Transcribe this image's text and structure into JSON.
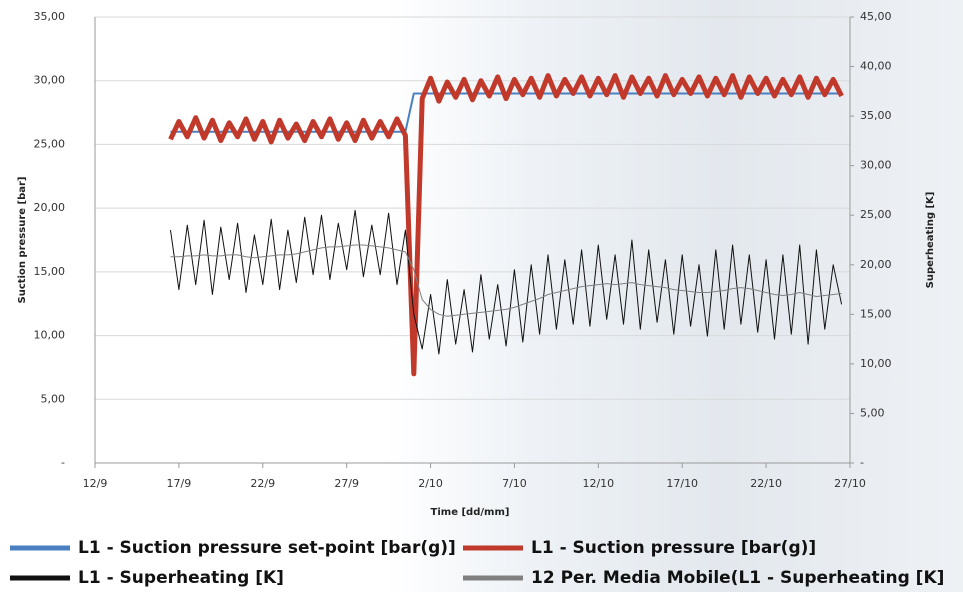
{
  "chart_data": {
    "type": "line",
    "ylabel": "Suction pressure [bar]",
    "y2label": "Superheating [K]",
    "xlabel": "Time [dd/mm]",
    "xlim": [
      0,
      45
    ],
    "xticks": [
      {
        "value": 0,
        "label": "12/9"
      },
      {
        "value": 5,
        "label": "17/9"
      },
      {
        "value": 10,
        "label": "22/9"
      },
      {
        "value": 15,
        "label": "27/9"
      },
      {
        "value": 20,
        "label": "2/10"
      },
      {
        "value": 25,
        "label": "7/10"
      },
      {
        "value": 30,
        "label": "12/10"
      },
      {
        "value": 35,
        "label": "17/10"
      },
      {
        "value": 40,
        "label": "22/10"
      },
      {
        "value": 45,
        "label": "27/10"
      }
    ],
    "ylim": [
      0,
      35
    ],
    "yticks": [
      {
        "value": 0,
        "label": "-"
      },
      {
        "value": 5,
        "label": "5,00"
      },
      {
        "value": 10,
        "label": "10,00"
      },
      {
        "value": 15,
        "label": "15,00"
      },
      {
        "value": 20,
        "label": "20,00"
      },
      {
        "value": 25,
        "label": "25,00"
      },
      {
        "value": 30,
        "label": "30,00"
      },
      {
        "value": 35,
        "label": "35,00"
      }
    ],
    "y2lim": [
      0,
      45
    ],
    "y2ticks": [
      {
        "value": 0,
        "label": "-"
      },
      {
        "value": 5,
        "label": "5,00"
      },
      {
        "value": 10,
        "label": "10,00"
      },
      {
        "value": 15,
        "label": "15,00"
      },
      {
        "value": 20,
        "label": "20,00"
      },
      {
        "value": 25,
        "label": "25,00"
      },
      {
        "value": 30,
        "label": "30,00"
      },
      {
        "value": 35,
        "label": "35,00"
      },
      {
        "value": 40,
        "label": "40,00"
      },
      {
        "value": 45,
        "label": "45,00"
      }
    ],
    "grid": true,
    "x": [
      4.5,
      5,
      5.5,
      6,
      6.5,
      7,
      7.5,
      8,
      8.5,
      9,
      9.5,
      10,
      10.5,
      11,
      11.5,
      12,
      12.5,
      13,
      13.5,
      14,
      14.5,
      15,
      15.5,
      16,
      16.5,
      17,
      17.5,
      18,
      18.5,
      19,
      19.5,
      20,
      20.5,
      21,
      21.5,
      22,
      22.5,
      23,
      23.5,
      24,
      24.5,
      25,
      25.5,
      26,
      26.5,
      27,
      27.5,
      28,
      28.5,
      29,
      29.5,
      30,
      30.5,
      31,
      31.5,
      32,
      32.5,
      33,
      33.5,
      34,
      34.5,
      35,
      35.5,
      36,
      36.5,
      37,
      37.5,
      38,
      38.5,
      39,
      39.5,
      40,
      40.5,
      41,
      41.5,
      42,
      42.5,
      43,
      43.5,
      44,
      44.5
    ],
    "series": [
      {
        "name": "L1 - Suction pressure set-point [bar(g)]",
        "color": "#4a7fc1",
        "axis": "y",
        "values": [
          26,
          26,
          26,
          26,
          26,
          26,
          26,
          26,
          26,
          26,
          26,
          26,
          26,
          26,
          26,
          26,
          26,
          26,
          26,
          26,
          26,
          26,
          26,
          26,
          26,
          26,
          26,
          26,
          26,
          29,
          29,
          29,
          29,
          29,
          29,
          29,
          29,
          29,
          29,
          29,
          29,
          29,
          29,
          29,
          29,
          29,
          29,
          29,
          29,
          29,
          29,
          29,
          29,
          29,
          29,
          29,
          29,
          29,
          29,
          29,
          29,
          29,
          29,
          29,
          29,
          29,
          29,
          29,
          29,
          29,
          29,
          29,
          29,
          29,
          29,
          29,
          29,
          29,
          29,
          29,
          29
        ]
      },
      {
        "name": "L1 - Suction pressure [bar(g)]",
        "color": "#c0392b",
        "axis": "y",
        "values": [
          25.4,
          26.8,
          25.6,
          27.1,
          25.5,
          26.9,
          25.3,
          26.7,
          25.6,
          27.0,
          25.4,
          26.8,
          25.2,
          26.9,
          25.5,
          26.6,
          25.3,
          26.8,
          25.6,
          27.0,
          25.4,
          26.7,
          25.3,
          26.9,
          25.5,
          26.8,
          25.6,
          27.0,
          25.7,
          7.0,
          28.6,
          30.2,
          28.4,
          29.9,
          28.7,
          30.1,
          28.5,
          30.0,
          28.8,
          30.3,
          28.6,
          30.1,
          28.9,
          30.2,
          28.7,
          30.4,
          28.8,
          30.1,
          29.0,
          30.3,
          28.8,
          30.2,
          28.9,
          30.4,
          28.7,
          30.3,
          29.0,
          30.2,
          28.8,
          30.4,
          28.9,
          30.1,
          29.0,
          30.3,
          28.8,
          30.2,
          28.9,
          30.4,
          28.7,
          30.3,
          29.0,
          30.2,
          28.8,
          30.1,
          28.9,
          30.3,
          28.7,
          30.2,
          28.9,
          30.1,
          28.8
        ]
      },
      {
        "name": "L1 - Superheating [K]",
        "color": "#111111",
        "axis": "y2",
        "values": [
          23.5,
          17.5,
          24.0,
          18.0,
          24.5,
          17.0,
          23.8,
          18.5,
          24.2,
          17.2,
          23.0,
          18.0,
          24.6,
          17.5,
          23.5,
          18.2,
          24.8,
          19.0,
          25.0,
          18.5,
          24.2,
          19.5,
          25.5,
          18.8,
          24.0,
          19.0,
          25.2,
          18.0,
          23.5,
          15.0,
          11.5,
          17.0,
          11.0,
          18.5,
          12.0,
          17.5,
          11.2,
          19.0,
          12.5,
          18.0,
          11.8,
          19.5,
          12.2,
          20.0,
          13.0,
          21.0,
          13.5,
          20.5,
          14.0,
          21.5,
          13.8,
          22.0,
          14.5,
          21.0,
          14.0,
          22.5,
          13.5,
          21.5,
          14.2,
          20.5,
          13.0,
          21.0,
          13.8,
          20.0,
          12.8,
          21.5,
          13.5,
          22.0,
          14.0,
          21.0,
          13.2,
          20.5,
          12.5,
          21.0,
          13.0,
          22.0,
          12.0,
          21.5,
          13.5,
          20.0,
          16.0
        ]
      },
      {
        "name": "12 Per. Media Mobile(L1 - Superheating [K]",
        "color": "#808080",
        "axis": "y2",
        "values": [
          20.8,
          20.8,
          20.9,
          20.9,
          21.0,
          20.9,
          20.9,
          21.0,
          21.0,
          20.8,
          20.7,
          20.8,
          20.9,
          21.0,
          21.0,
          21.1,
          21.3,
          21.5,
          21.7,
          21.8,
          21.8,
          21.9,
          22.0,
          22.0,
          21.9,
          21.8,
          21.7,
          21.5,
          21.3,
          19.5,
          16.5,
          15.5,
          15.0,
          14.8,
          14.9,
          15.0,
          15.1,
          15.2,
          15.3,
          15.4,
          15.5,
          15.7,
          16.0,
          16.3,
          16.6,
          17.0,
          17.2,
          17.4,
          17.6,
          17.8,
          17.9,
          18.0,
          18.1,
          18.0,
          18.1,
          18.2,
          18.0,
          17.9,
          17.8,
          17.7,
          17.5,
          17.4,
          17.3,
          17.2,
          17.2,
          17.3,
          17.4,
          17.6,
          17.7,
          17.6,
          17.4,
          17.2,
          17.0,
          16.9,
          17.0,
          17.2,
          17.0,
          16.8,
          16.9,
          17.0,
          17.1
        ]
      }
    ]
  }
}
